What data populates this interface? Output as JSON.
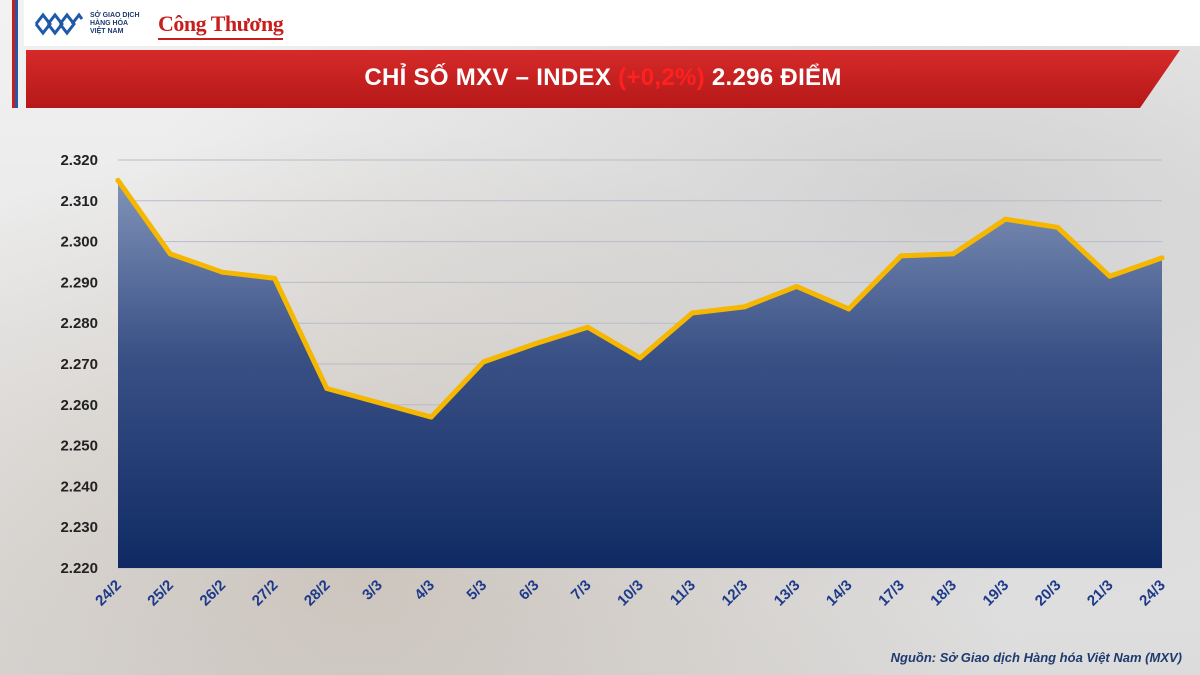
{
  "header": {
    "exchange_logo_lines": [
      "SỞ GIAO DỊCH",
      "HÀNG HÓA",
      "VIỆT NAM"
    ],
    "publisher_logo": "Công Thương"
  },
  "banner": {
    "title_prefix": "CHỈ SỐ MXV – INDEX ",
    "title_change": "(+0,2%)",
    "title_suffix": " 2.296 ĐIỂM"
  },
  "source": "Nguồn: Sở Giao dịch Hàng hóa Việt Nam (MXV)",
  "colors": {
    "banner_red": "#c81e1e",
    "line_yellow": "#f5b700",
    "area_top": "#8093b8",
    "area_bottom": "#0f2a63",
    "change_red": "#ff2020",
    "x_tick": "#1e3a8a"
  },
  "chart_data": {
    "type": "area",
    "title": "CHỈ SỐ MXV – INDEX (+0,2%) 2.296 ĐIỂM",
    "categories": [
      "24/2",
      "25/2",
      "26/2",
      "27/2",
      "28/2",
      "3/3",
      "4/3",
      "5/3",
      "6/3",
      "7/3",
      "10/3",
      "11/3",
      "12/3",
      "13/3",
      "14/3",
      "17/3",
      "18/3",
      "19/3",
      "20/3",
      "21/3",
      "24/3"
    ],
    "series": [
      {
        "values": [
          2315,
          2297,
          2292.5,
          2291,
          2264,
          2260.5,
          2257,
          2270.5,
          2275,
          2279,
          2271.5,
          2282.5,
          2284,
          2289,
          2283.5,
          2296.5,
          2297,
          2305.5,
          2303.5,
          2291.5,
          2296
        ]
      }
    ],
    "y_ticks": [
      2220,
      2230,
      2240,
      2250,
      2260,
      2270,
      2280,
      2290,
      2300,
      2310,
      2320
    ],
    "y_tick_labels": [
      "2.220",
      "2.230",
      "2.240",
      "2.250",
      "2.260",
      "2.270",
      "2.280",
      "2.290",
      "2.300",
      "2.310",
      "2.320"
    ],
    "ylim": [
      2220,
      2320
    ],
    "xlabel": "",
    "ylabel": "",
    "grid": true,
    "legend": "none"
  }
}
